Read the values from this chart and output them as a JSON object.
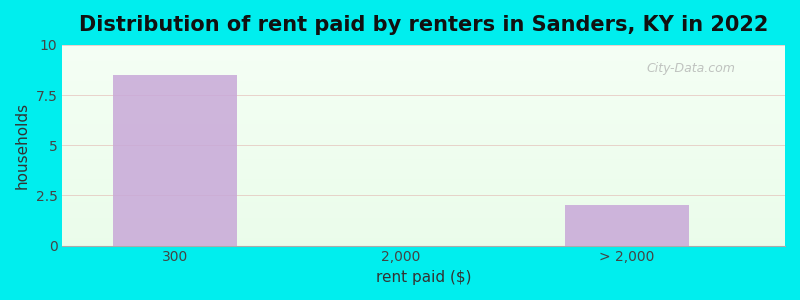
{
  "title": "Distribution of rent paid by renters in Sanders, KY in 2022",
  "xlabel": "rent paid ($)",
  "ylabel": "households",
  "bar_positions": [
    0,
    2
  ],
  "bar_values": [
    8.5,
    2.0
  ],
  "bar_color": "#c8a8d8",
  "bar_width": 0.55,
  "xtick_positions": [
    0,
    1,
    2
  ],
  "xtick_labels": [
    "300",
    "2,000",
    "> 2,000"
  ],
  "xlim": [
    -0.5,
    2.7
  ],
  "ylim": [
    0,
    10
  ],
  "yticks": [
    0,
    2.5,
    5.0,
    7.5,
    10.0
  ],
  "background_outer": "#00EEEE",
  "title_fontsize": 15,
  "axis_label_fontsize": 11,
  "watermark": "City-Data.com"
}
